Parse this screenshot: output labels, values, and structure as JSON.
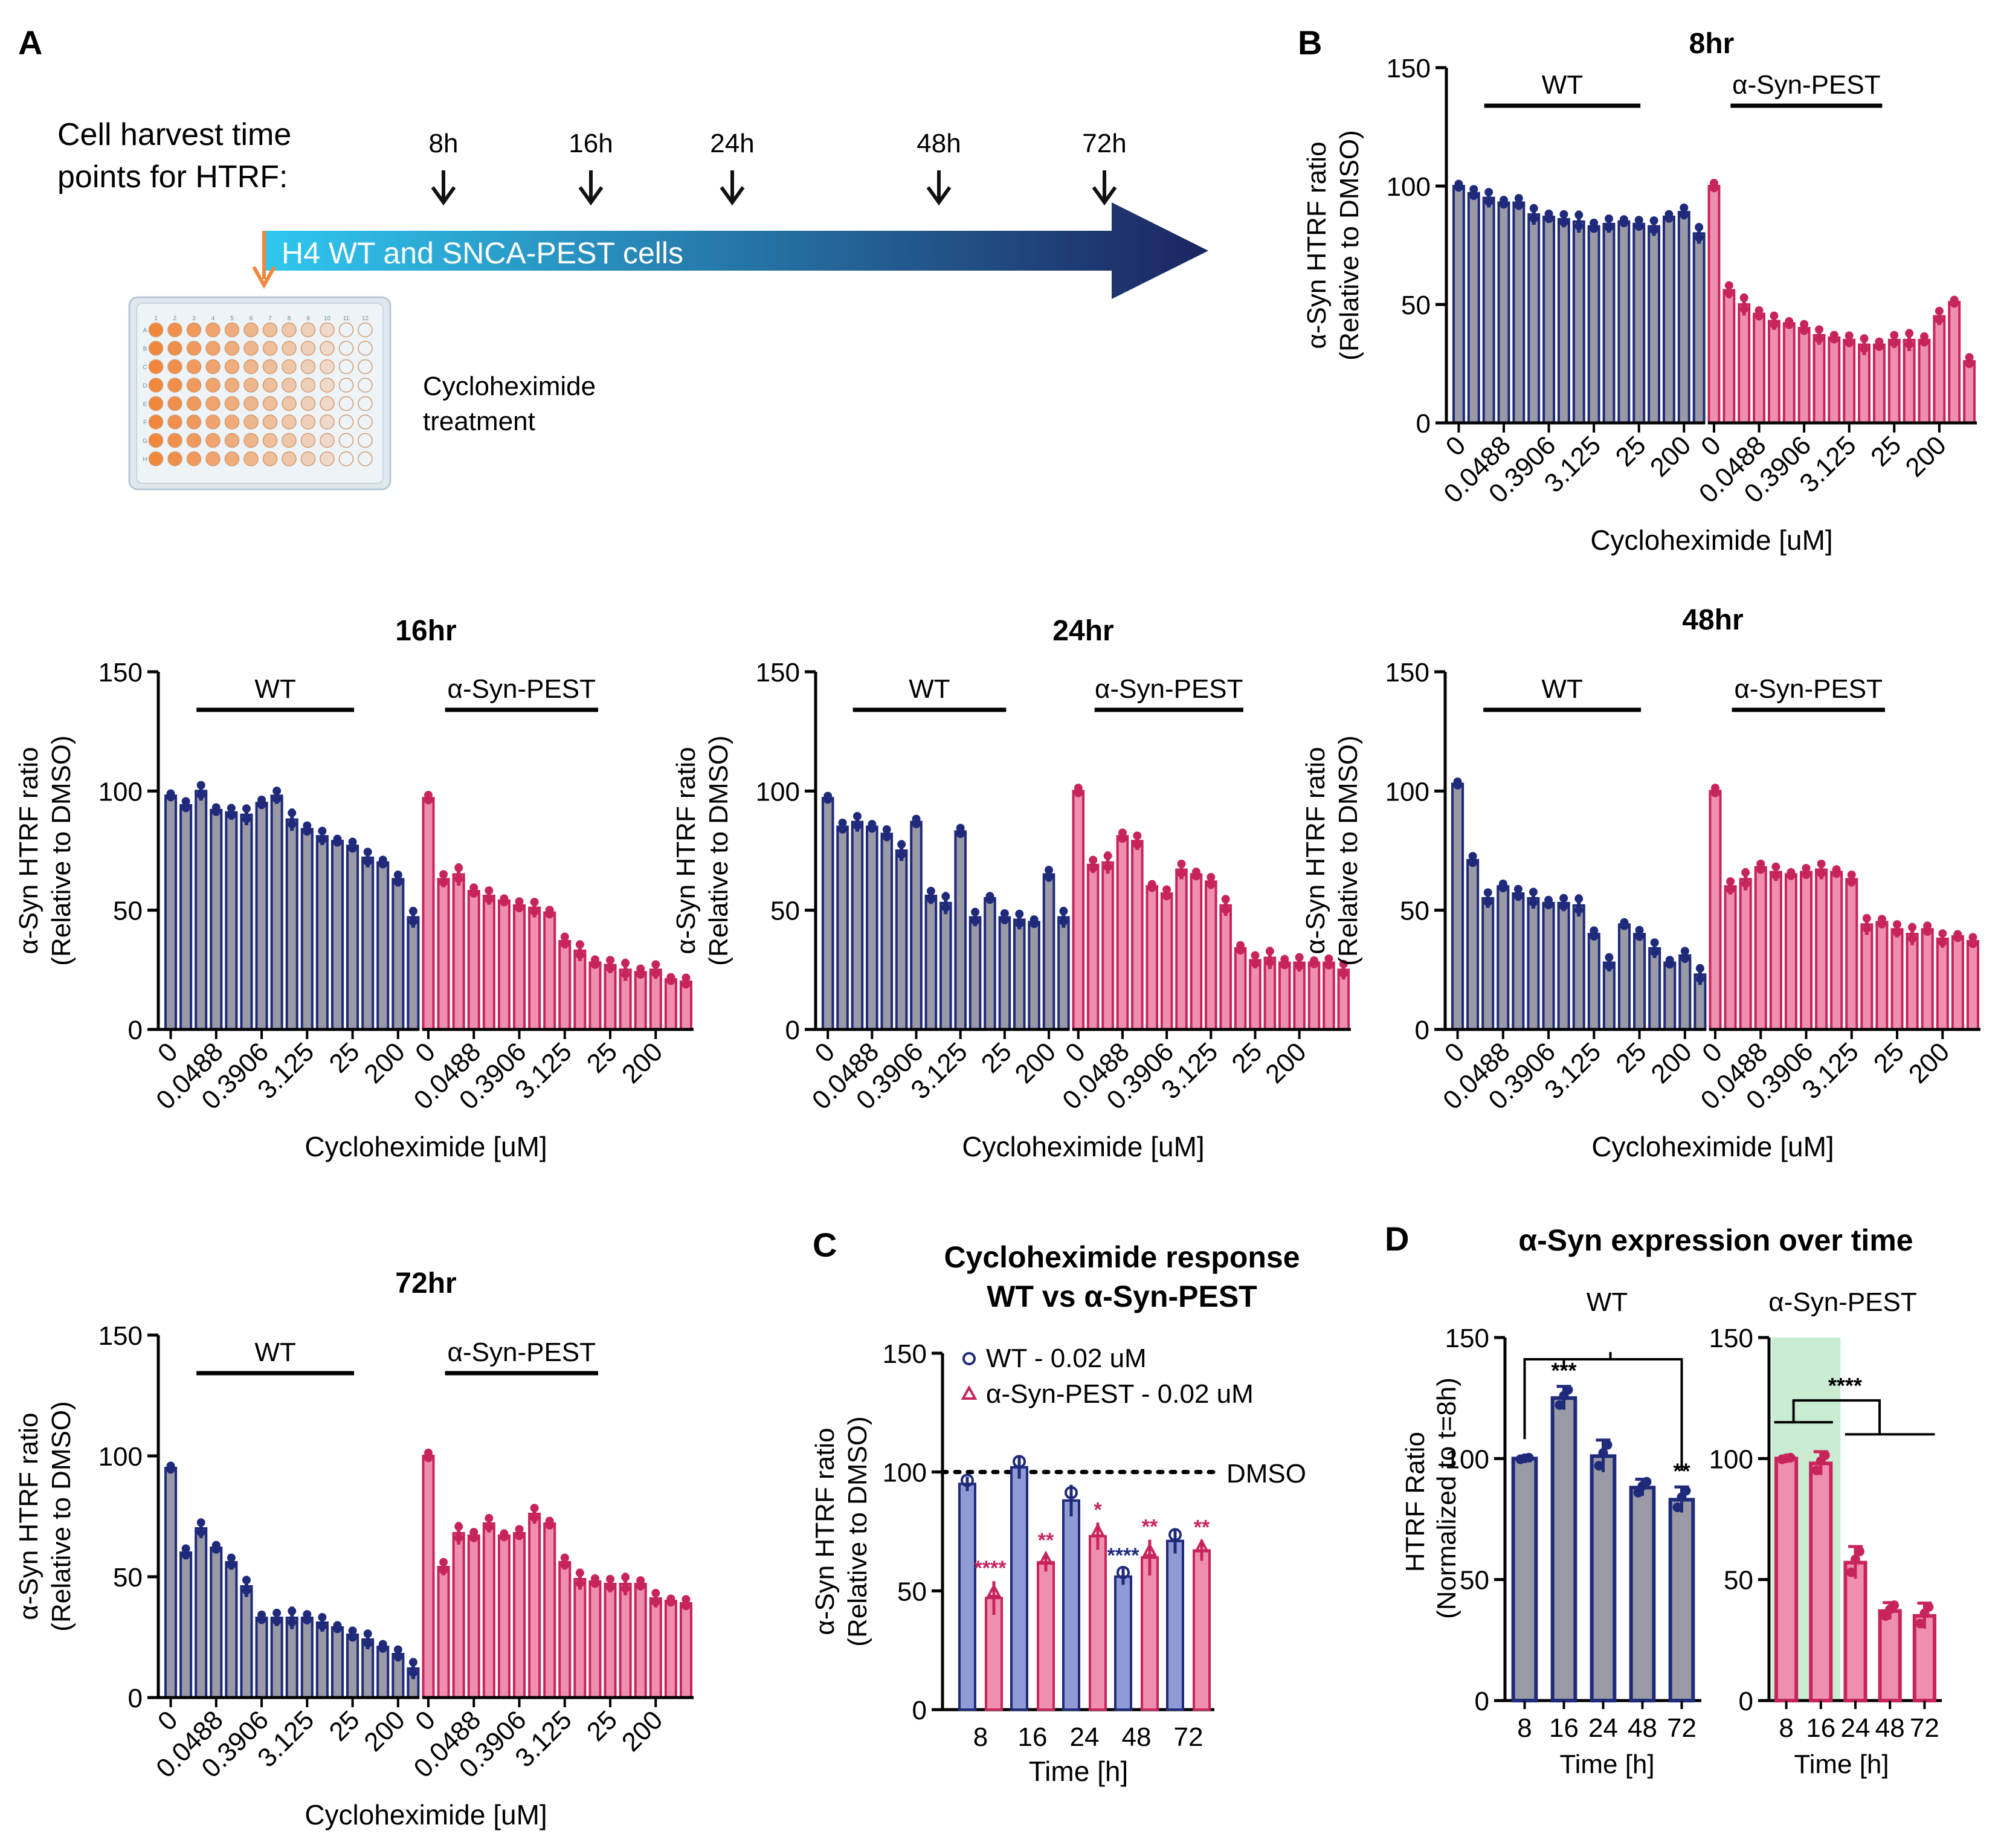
{
  "colors": {
    "wt_dark": "#1f2a7a",
    "wt_fill": "#8e9bd4",
    "wt_grey": "#9a9aa6",
    "pest_dark": "#c8245c",
    "pest_fill": "#ef8fb0",
    "arrow_start": "#2fc7ef",
    "arrow_end": "#1c2560",
    "orange": "#f0873c",
    "green_shade": "#c9ecd3"
  },
  "panelA": {
    "label": "A",
    "harvest_label_line1": "Cell harvest time",
    "harvest_label_line2": "points for HTRF:",
    "timepoints": [
      "8h",
      "16h",
      "24h",
      "48h",
      "72h"
    ],
    "arrow_text": "H4 WT and SNCA-PEST cells",
    "plate_label_line1": "Cycloheximide",
    "plate_label_line2": "treatment",
    "plate_columns": [
      "1",
      "2",
      "3",
      "4",
      "5",
      "6",
      "7",
      "8",
      "9",
      "10",
      "11",
      "12"
    ],
    "plate_rows": [
      "A",
      "B",
      "C",
      "D",
      "E",
      "F",
      "G",
      "H"
    ]
  },
  "dose_ticks": [
    "0",
    "0.0488",
    "0.3906",
    "3.125",
    "25",
    "200"
  ],
  "dose_xlabel": "Cycloheximide [uM]",
  "dose_ylabel_line1": "α-Syn HTRF ratio",
  "dose_ylabel_line2": "(Relative to DMSO)",
  "group_wt": "WT",
  "group_pest": "α-Syn-PEST",
  "panelB_label": "B",
  "panelC": {
    "label": "C",
    "title_line1": "Cycloheximide response",
    "title_line2": "WT vs α-Syn-PEST",
    "legend_wt": "WT - 0.02 uM",
    "legend_pest": "α-Syn-PEST - 0.02 uM",
    "dmso_label": "DMSO"
  },
  "panelD": {
    "label": "D",
    "title": "α-Syn expression over time",
    "ylabel_line1": "HTRF Ratio",
    "ylabel_line2": "(Normalized to t=8h)",
    "xlabel": "Time [h]",
    "wt_title": "WT",
    "pest_title": "α-Syn-PEST"
  },
  "chart_data": [
    {
      "id": "dose8",
      "type": "bar",
      "title": "8hr",
      "xlabel": "Cycloheximide [uM]",
      "ylabel": "α-Syn HTRF ratio (Relative to DMSO)",
      "ylim": [
        0,
        150
      ],
      "yticks": [
        0,
        50,
        100,
        150
      ],
      "series": [
        {
          "name": "WT",
          "values": [
            100,
            97,
            95,
            93,
            93,
            88,
            87,
            86,
            85,
            83,
            84,
            85,
            84,
            83,
            87,
            89,
            80
          ]
        },
        {
          "name": "α-Syn-PEST",
          "values": [
            100,
            56,
            50,
            46,
            43,
            42,
            40,
            37,
            36,
            35,
            33,
            33,
            35,
            35,
            35,
            45,
            51,
            26
          ]
        }
      ]
    },
    {
      "id": "dose16",
      "type": "bar",
      "title": "16hr",
      "xlabel": "Cycloheximide [uM]",
      "ylabel": "α-Syn HTRF ratio (Relative to DMSO)",
      "ylim": [
        0,
        150
      ],
      "yticks": [
        0,
        50,
        100,
        150
      ],
      "series": [
        {
          "name": "WT",
          "values": [
            98,
            94,
            100,
            92,
            91,
            90,
            95,
            98,
            88,
            84,
            81,
            79,
            77,
            72,
            70,
            63,
            47
          ]
        },
        {
          "name": "α-Syn-PEST",
          "values": [
            97,
            63,
            65,
            58,
            56,
            54,
            52,
            51,
            49,
            37,
            33,
            28,
            27,
            25,
            24,
            25,
            21,
            20
          ]
        }
      ]
    },
    {
      "id": "dose24",
      "type": "bar",
      "title": "24hr",
      "xlabel": "Cycloheximide [uM]",
      "ylabel": "α-Syn HTRF ratio (Relative to DMSO)",
      "ylim": [
        0,
        150
      ],
      "yticks": [
        0,
        50,
        100,
        150
      ],
      "series": [
        {
          "name": "WT",
          "values": [
            97,
            85,
            87,
            85,
            82,
            75,
            87,
            56,
            53,
            83,
            47,
            55,
            47,
            46,
            45,
            65,
            47
          ]
        },
        {
          "name": "α-Syn-PEST",
          "values": [
            100,
            69,
            70,
            81,
            79,
            60,
            57,
            67,
            65,
            62,
            52,
            34,
            29,
            30,
            28,
            28,
            28,
            28,
            25
          ]
        }
      ]
    },
    {
      "id": "dose48",
      "type": "bar",
      "title": "48hr",
      "xlabel": "Cycloheximide [uM]",
      "ylabel": "α-Syn HTRF ratio (Relative to DMSO)",
      "ylim": [
        0,
        150
      ],
      "yticks": [
        0,
        50,
        100,
        150
      ],
      "series": [
        {
          "name": "WT",
          "values": [
            103,
            71,
            55,
            60,
            57,
            55,
            53,
            53,
            52,
            40,
            28,
            44,
            40,
            34,
            28,
            31,
            23
          ]
        },
        {
          "name": "α-Syn-PEST",
          "values": [
            100,
            60,
            63,
            68,
            66,
            65,
            66,
            67,
            66,
            63,
            44,
            45,
            42,
            40,
            42,
            38,
            39,
            37
          ]
        }
      ]
    },
    {
      "id": "dose72",
      "type": "bar",
      "title": "72hr",
      "xlabel": "Cycloheximide [uM]",
      "ylabel": "α-Syn HTRF ratio (Relative to DMSO)",
      "ylim": [
        0,
        150
      ],
      "yticks": [
        0,
        50,
        100,
        150
      ],
      "series": [
        {
          "name": "WT",
          "values": [
            95,
            60,
            70,
            62,
            56,
            46,
            33,
            33,
            33,
            33,
            31,
            29,
            26,
            24,
            21,
            18,
            12
          ]
        },
        {
          "name": "α-Syn-PEST",
          "values": [
            100,
            54,
            68,
            67,
            72,
            67,
            68,
            76,
            72,
            56,
            49,
            48,
            47,
            47,
            47,
            41,
            40,
            39
          ]
        }
      ]
    },
    {
      "id": "panelC",
      "type": "bar",
      "title": "Cycloheximide response WT vs α-Syn-PEST",
      "xlabel": "Time [h]",
      "ylabel": "α-Syn HTRF ratio (Relative to DMSO)",
      "categories": [
        "8",
        "16",
        "24",
        "48",
        "72"
      ],
      "ylim": [
        0,
        150
      ],
      "yticks": [
        0,
        50,
        100,
        150
      ],
      "reference_line": {
        "value": 100,
        "label": "DMSO"
      },
      "series": [
        {
          "name": "WT - 0.02 uM",
          "values": [
            95,
            102,
            88,
            56,
            71
          ],
          "annotations": [
            "",
            "",
            "",
            "****",
            ""
          ]
        },
        {
          "name": "α-Syn-PEST - 0.02 uM",
          "values": [
            47,
            62,
            73,
            64,
            67
          ],
          "annotations": [
            "****",
            "**",
            "*",
            "**",
            "**"
          ]
        }
      ]
    },
    {
      "id": "panelD_wt",
      "type": "bar",
      "title": "WT",
      "xlabel": "Time [h]",
      "ylabel": "HTRF Ratio (Normalized to t=8h)",
      "categories": [
        "8",
        "16",
        "24",
        "48",
        "72"
      ],
      "ylim": [
        0,
        150
      ],
      "yticks": [
        0,
        50,
        100,
        150
      ],
      "values": [
        100,
        125,
        101,
        88,
        83
      ],
      "annotations": [
        "",
        "***",
        "",
        "",
        "**"
      ]
    },
    {
      "id": "panelD_pest",
      "type": "bar",
      "title": "α-Syn-PEST",
      "xlabel": "Time [h]",
      "ylabel": "HTRF Ratio (Normalized to t=8h)",
      "categories": [
        "8",
        "16",
        "24",
        "48",
        "72"
      ],
      "ylim": [
        0,
        150
      ],
      "yticks": [
        0,
        50,
        100,
        150
      ],
      "values": [
        100,
        98,
        57,
        37,
        35
      ],
      "annotations": [
        "",
        "",
        "",
        "",
        ""
      ],
      "bracket_label": "****"
    }
  ]
}
